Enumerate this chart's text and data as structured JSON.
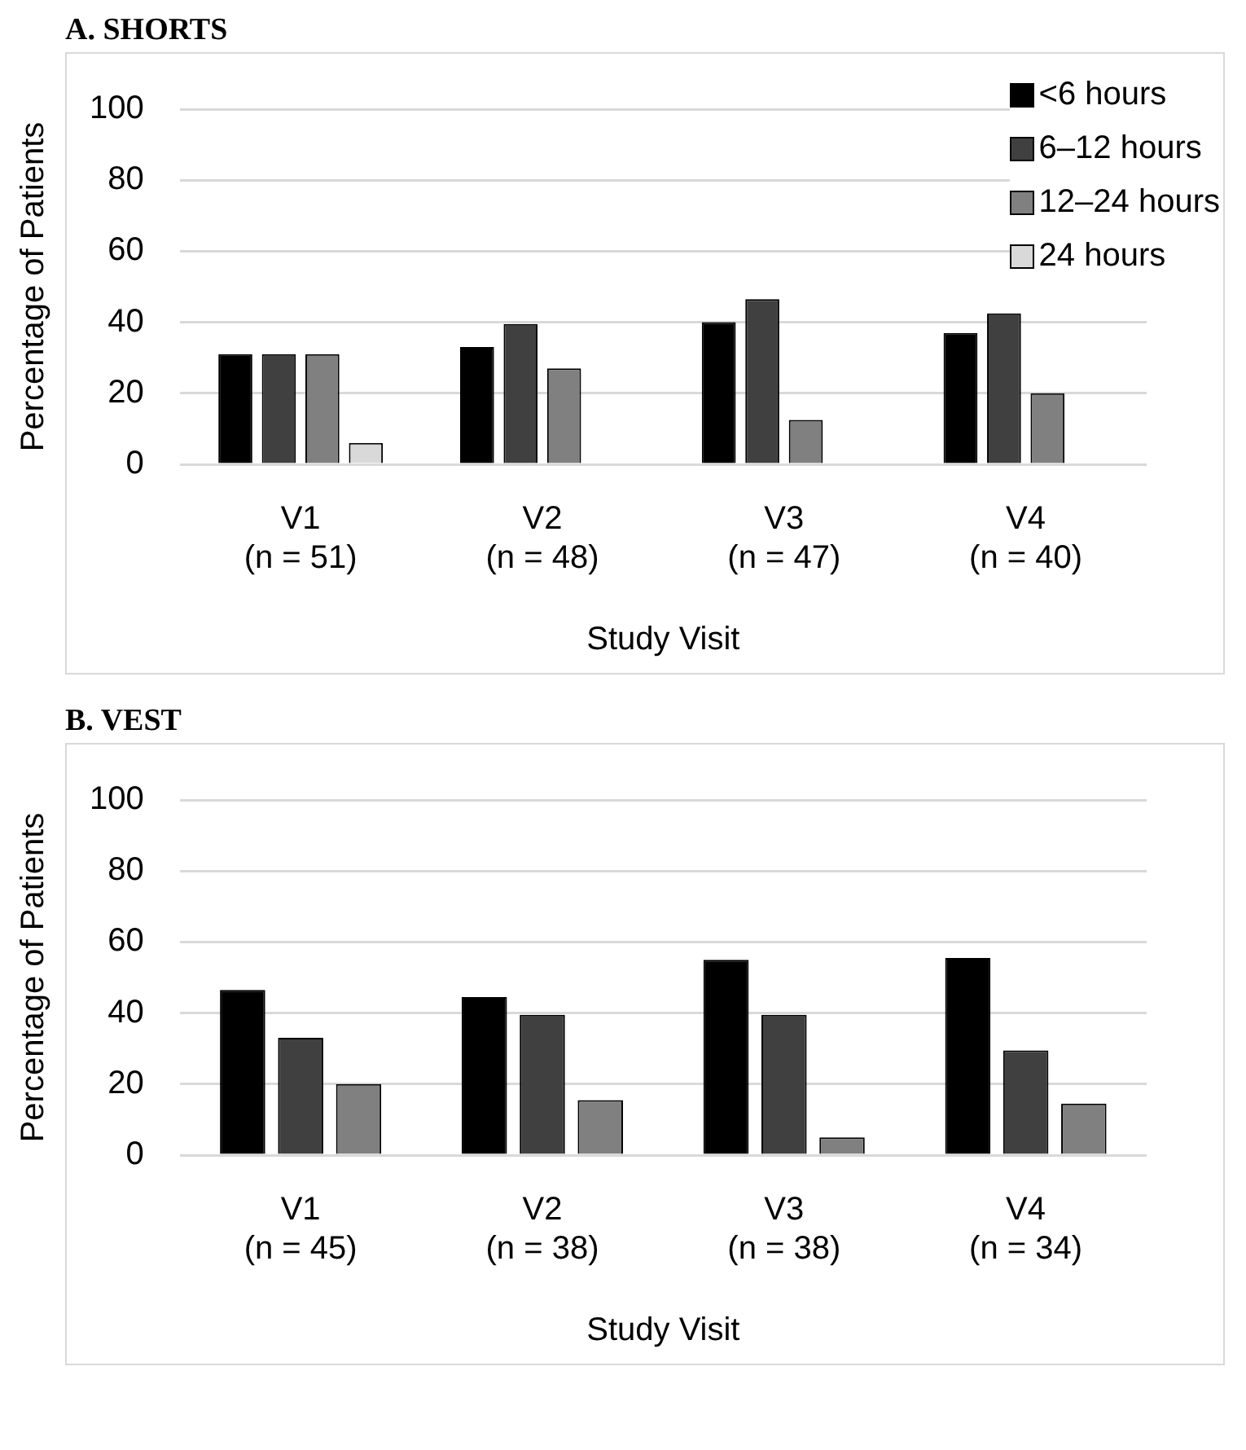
{
  "chart_data": [
    {
      "type": "bar",
      "title": "A. SHORTS",
      "xlabel": "Study Visit",
      "ylabel": "Percentage of Patients",
      "categories": [
        "V1\n(n = 51)",
        "V2\n(n = 48)",
        "V3\n(n = 47)",
        "V4\n(n = 40)"
      ],
      "series": [
        {
          "name": "<6 hours",
          "color": "#000000",
          "values": [
            31,
            33,
            40,
            37
          ]
        },
        {
          "name": "6–12 hours",
          "color": "#404040",
          "values": [
            31,
            39.5,
            46.5,
            42.5
          ]
        },
        {
          "name": "12–24 hours",
          "color": "#808080",
          "values": [
            31,
            27,
            12.5,
            20
          ]
        },
        {
          "name": "24 hours",
          "color": "#d9d9d9",
          "values": [
            6,
            0,
            0,
            0
          ]
        }
      ],
      "ylim": [
        0,
        100
      ],
      "yticks": [
        0,
        20,
        40,
        60,
        80,
        100
      ],
      "grid": "y",
      "legend": "top right"
    },
    {
      "type": "bar",
      "title": "B. VEST",
      "xlabel": "Study Visit",
      "ylabel": "Percentage of Patients",
      "categories": [
        "V1\n(n = 45)",
        "V2\n(n = 38)",
        "V3\n(n = 38)",
        "V4\n(n = 34)"
      ],
      "series": [
        {
          "color": "#000000",
          "values": [
            46.5,
            44.5,
            55,
            55.5
          ]
        },
        {
          "color": "#404040",
          "values": [
            33,
            39.5,
            39.5,
            29.5
          ]
        },
        {
          "color": "#808080",
          "values": [
            20,
            15.5,
            5,
            14.5
          ]
        }
      ],
      "ylim": [
        0,
        100
      ],
      "yticks": [
        0,
        20,
        40,
        60,
        80,
        100
      ],
      "grid": "y"
    }
  ]
}
